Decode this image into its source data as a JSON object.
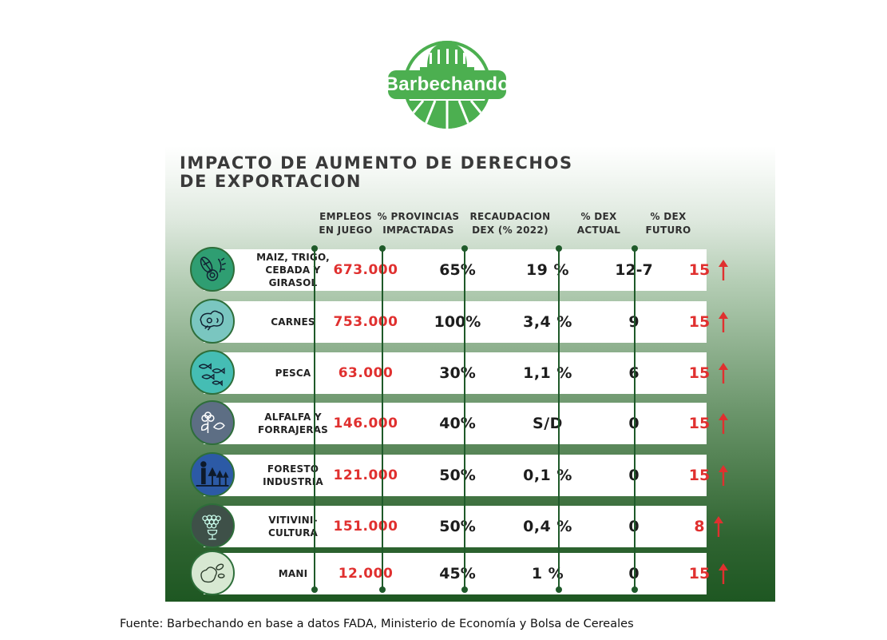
{
  "logo": {
    "text": "Barbechando"
  },
  "title": {
    "line1": "IMPACTO DE AUMENTO DE DERECHOS",
    "line2": "DE EXPORTACION"
  },
  "headers": {
    "empleos": [
      "EMPLEOS",
      "EN JUEGO"
    ],
    "provincias": [
      "% PROVINCIAS",
      "IMPACTADAS"
    ],
    "recaudacion": [
      "RECAUDACION",
      "DEX (% 2022)"
    ],
    "dex_actual": [
      "% DEX",
      "ACTUAL"
    ],
    "dex_futuro": [
      "% DEX",
      "FUTURO"
    ]
  },
  "rows": [
    {
      "icon": "grains-icon",
      "category": [
        "MAIZ, TRIGO,",
        "CEBADA Y",
        "GIRASOL"
      ],
      "empleos": "673.000",
      "provincias": "65%",
      "recaudacion": "19 %",
      "dex_actual": "12-7",
      "dex_futuro": "15"
    },
    {
      "icon": "meat-icon",
      "category": [
        "CARNES"
      ],
      "empleos": "753.000",
      "provincias": "100%",
      "recaudacion": "3,4 %",
      "dex_actual": "9",
      "dex_futuro": "15"
    },
    {
      "icon": "fish-icon",
      "category": [
        "PESCA"
      ],
      "empleos": "63.000",
      "provincias": "30%",
      "recaudacion": "1,1 %",
      "dex_actual": "6",
      "dex_futuro": "15"
    },
    {
      "icon": "alfalfa-icon",
      "category": [
        "ALFALFA Y",
        "FORRAJERAS"
      ],
      "empleos": "146.000",
      "provincias": "40%",
      "recaudacion": "S/D",
      "dex_actual": "0",
      "dex_futuro": "15"
    },
    {
      "icon": "forest-icon",
      "category": [
        "FORESTO",
        "INDUSTRIA"
      ],
      "empleos": "121.000",
      "provincias": "50%",
      "recaudacion": "0,1 %",
      "dex_actual": "0",
      "dex_futuro": "15"
    },
    {
      "icon": "grapes-icon",
      "category": [
        "VITIVINI-",
        "CULTURA"
      ],
      "empleos": "151.000",
      "provincias": "50%",
      "recaudacion": "0,4 %",
      "dex_actual": "0",
      "dex_futuro": "8"
    },
    {
      "icon": "peanut-icon",
      "category": [
        "MANI"
      ],
      "empleos": "12.000",
      "provincias": "45%",
      "recaudacion": "1 %",
      "dex_actual": "0",
      "dex_futuro": "15"
    }
  ],
  "colors": {
    "accent_green": "#4caf50",
    "dark_green": "#1e5722",
    "red": "#e0302f",
    "icon_fills": [
      "#2f9e72",
      "#7ac6c0",
      "#45bdb4",
      "#5d6e84",
      "#2c5aa6",
      "#3e5048",
      "#d7e8d2"
    ]
  },
  "source": "Fuente: Barbechando en base a datos FADA, Ministerio de Economía y Bolsa de Cereales"
}
